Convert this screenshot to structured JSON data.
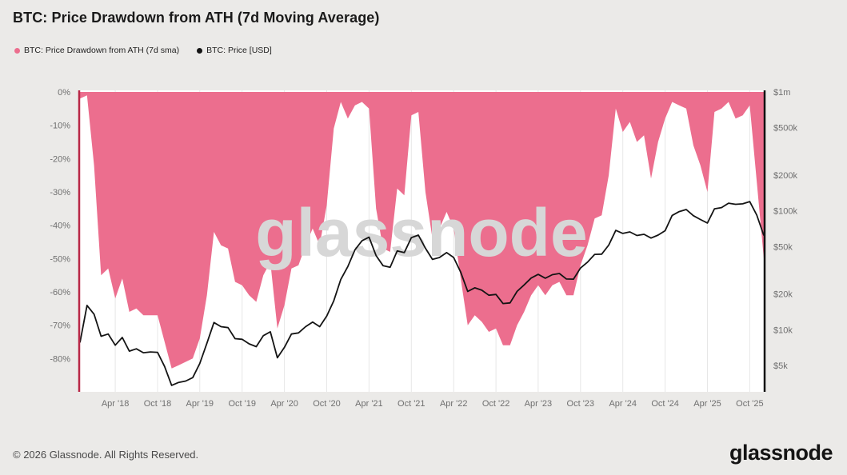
{
  "watermark": "glassnode",
  "footer": {
    "copyright": "© 2026 Glassnode. All Rights Reserved.",
    "logo_text": "glassnode"
  },
  "colors": {
    "background": "#ebeae8",
    "plot_background": "#ffffff",
    "area_pink": "#ec6e8e",
    "price_line": "#141414",
    "left_axis_line": "#b82746",
    "right_axis_line": "#111111",
    "gridline": "#e7e7e7",
    "tick_text": "#6f6f6f",
    "watermark": "#d7d7d7",
    "title_text": "#1a1a1a",
    "footer_text": "#4a4a4a"
  },
  "chart_data": {
    "type": "area+line",
    "title": "BTC: Price Drawdown from ATH (7d Moving Average)",
    "grid": "vertical-only",
    "legend_position": "top-left",
    "x_months": [
      "2017-11",
      "2017-12",
      "2018-01",
      "2018-02",
      "2018-03",
      "2018-04",
      "2018-05",
      "2018-06",
      "2018-07",
      "2018-08",
      "2018-09",
      "2018-10",
      "2018-11",
      "2018-12",
      "2019-01",
      "2019-02",
      "2019-03",
      "2019-04",
      "2019-05",
      "2019-06",
      "2019-07",
      "2019-08",
      "2019-09",
      "2019-10",
      "2019-11",
      "2019-12",
      "2020-01",
      "2020-02",
      "2020-03",
      "2020-04",
      "2020-05",
      "2020-06",
      "2020-07",
      "2020-08",
      "2020-09",
      "2020-10",
      "2020-11",
      "2020-12",
      "2021-01",
      "2021-02",
      "2021-03",
      "2021-04",
      "2021-05",
      "2021-06",
      "2021-07",
      "2021-08",
      "2021-09",
      "2021-10",
      "2021-11",
      "2021-12",
      "2022-01",
      "2022-02",
      "2022-03",
      "2022-04",
      "2022-05",
      "2022-06",
      "2022-07",
      "2022-08",
      "2022-09",
      "2022-10",
      "2022-11",
      "2022-12",
      "2023-01",
      "2023-02",
      "2023-03",
      "2023-04",
      "2023-05",
      "2023-06",
      "2023-07",
      "2023-08",
      "2023-09",
      "2023-10",
      "2023-11",
      "2023-12",
      "2024-01",
      "2024-02",
      "2024-03",
      "2024-04",
      "2024-05",
      "2024-06",
      "2024-07",
      "2024-08",
      "2024-09",
      "2024-10",
      "2024-11",
      "2024-12",
      "2025-01",
      "2025-02",
      "2025-03",
      "2025-04",
      "2025-05",
      "2025-06",
      "2025-07",
      "2025-08",
      "2025-09",
      "2025-10",
      "2025-11",
      "2025-12"
    ],
    "series": [
      {
        "name": "BTC: Price Drawdown from ATH (7d sma)",
        "type": "area",
        "axis": "left",
        "unit": "%",
        "color": "#ec6e8e",
        "values": [
          -2,
          -1,
          -22,
          -55,
          -53,
          -62,
          -56,
          -66,
          -65,
          -67,
          -67,
          -67,
          -75,
          -83,
          -82,
          -81,
          -80,
          -74,
          -61,
          -42,
          -46,
          -47,
          -57,
          -58,
          -61,
          -63,
          -55,
          -51,
          -71,
          -64,
          -53,
          -52,
          -46,
          -41,
          -46,
          -34,
          -11,
          -3,
          -8,
          -4,
          -3,
          -5,
          -35,
          -47,
          -48,
          -29,
          -31,
          -7,
          -6,
          -30,
          -44,
          -41,
          -36,
          -41,
          -56,
          -70,
          -67,
          -69,
          -72,
          -71,
          -76,
          -76,
          -70,
          -66,
          -61,
          -58,
          -61,
          -58,
          -57,
          -61,
          -61,
          -52,
          -46,
          -38,
          -37,
          -25,
          -5,
          -12,
          -9,
          -15,
          -13,
          -26,
          -15,
          -8,
          -3,
          -4,
          -5,
          -16,
          -22,
          -30,
          -6,
          -5,
          -3,
          -8,
          -7,
          -4,
          -27,
          -50
        ]
      },
      {
        "name": "BTC: Price [USD]",
        "type": "line",
        "axis": "right",
        "unit": "USD",
        "color": "#141414",
        "values": [
          7800,
          16000,
          13500,
          8800,
          9200,
          7400,
          8600,
          6600,
          6900,
          6400,
          6500,
          6450,
          4900,
          3400,
          3600,
          3700,
          3950,
          5200,
          7700,
          11500,
          10600,
          10400,
          8400,
          8300,
          7600,
          7200,
          8900,
          9600,
          5800,
          7100,
          9200,
          9400,
          10600,
          11600,
          10600,
          13000,
          17500,
          26500,
          34000,
          47000,
          56000,
          60000,
          42000,
          34500,
          33500,
          46000,
          44500,
          59500,
          62500,
          48500,
          39000,
          40500,
          44500,
          40500,
          30500,
          21000,
          22500,
          21500,
          19500,
          19800,
          16600,
          16800,
          21000,
          23800,
          27200,
          29200,
          27100,
          29000,
          29700,
          26700,
          26600,
          33000,
          37000,
          43000,
          43200,
          51500,
          68500,
          64500,
          66500,
          62000,
          63500,
          59000,
          62500,
          68000,
          91500,
          98500,
          102500,
          91000,
          84500,
          79000,
          104000,
          106500,
          116000,
          113500,
          114500,
          119500,
          92000,
          62000
        ]
      }
    ],
    "left_axis": {
      "label_format": "percent",
      "range": [
        0,
        -90
      ],
      "ticks": [
        {
          "label": "0%",
          "value": 0
        },
        {
          "label": "-10%",
          "value": -10
        },
        {
          "label": "-20%",
          "value": -20
        },
        {
          "label": "-30%",
          "value": -30
        },
        {
          "label": "-40%",
          "value": -40
        },
        {
          "label": "-50%",
          "value": -50
        },
        {
          "label": "-60%",
          "value": -60
        },
        {
          "label": "-70%",
          "value": -70
        },
        {
          "label": "-80%",
          "value": -80
        }
      ]
    },
    "right_axis": {
      "scale": "log",
      "min": 3000,
      "max": 1000000,
      "ticks": [
        {
          "label": "$1m",
          "value": 1000000
        },
        {
          "label": "$500k",
          "value": 500000
        },
        {
          "label": "$200k",
          "value": 200000
        },
        {
          "label": "$100k",
          "value": 100000
        },
        {
          "label": "$50k",
          "value": 50000
        },
        {
          "label": "$20k",
          "value": 20000
        },
        {
          "label": "$10k",
          "value": 10000
        },
        {
          "label": "$5k",
          "value": 5000
        }
      ]
    },
    "x_ticks": [
      {
        "label": "Apr '18",
        "month": "2018-04"
      },
      {
        "label": "Oct '18",
        "month": "2018-10"
      },
      {
        "label": "Apr '19",
        "month": "2019-04"
      },
      {
        "label": "Oct '19",
        "month": "2019-10"
      },
      {
        "label": "Apr '20",
        "month": "2020-04"
      },
      {
        "label": "Oct '20",
        "month": "2020-10"
      },
      {
        "label": "Apr '21",
        "month": "2021-04"
      },
      {
        "label": "Oct '21",
        "month": "2021-10"
      },
      {
        "label": "Apr '22",
        "month": "2022-04"
      },
      {
        "label": "Oct '22",
        "month": "2022-10"
      },
      {
        "label": "Apr '23",
        "month": "2023-04"
      },
      {
        "label": "Oct '23",
        "month": "2023-10"
      },
      {
        "label": "Apr '24",
        "month": "2024-04"
      },
      {
        "label": "Oct '24",
        "month": "2024-10"
      },
      {
        "label": "Apr '25",
        "month": "2025-04"
      },
      {
        "label": "Oct '25",
        "month": "2025-10"
      }
    ]
  }
}
